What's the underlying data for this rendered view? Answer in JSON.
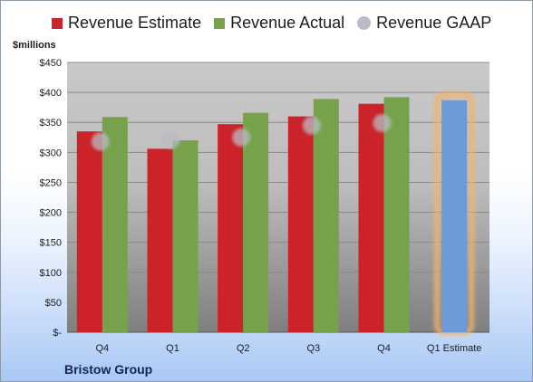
{
  "chart_data": {
    "type": "bar",
    "categories": [
      "Q4",
      "Q1",
      "Q2",
      "Q3",
      "Q4",
      "Q1 Estimate"
    ],
    "series": [
      {
        "name": "Revenue Estimate",
        "type": "bar",
        "color": "#cc2229",
        "values": [
          335,
          306,
          347,
          360,
          381,
          null
        ]
      },
      {
        "name": "Revenue Actual",
        "type": "bar",
        "color": "#77a24b",
        "values": [
          359,
          320,
          366,
          389,
          392,
          null
        ]
      },
      {
        "name": "Revenue GAAP",
        "type": "marker",
        "color": "#b9bcc4",
        "values": [
          318,
          321,
          325,
          345,
          349,
          null
        ]
      }
    ],
    "forecast": {
      "category": "Q1 Estimate",
      "value": 387,
      "color": "#6f9ad8",
      "highlight_color": "#f5b46b"
    },
    "ylabel": "$millions",
    "ylim": [
      0,
      450
    ],
    "y_ticks": [
      0,
      50,
      100,
      150,
      200,
      250,
      300,
      350,
      400,
      450
    ],
    "y_tick_labels": [
      "$-",
      "$50",
      "$100",
      "$150",
      "$200",
      "$250",
      "$300",
      "$350",
      "$400",
      "$450"
    ],
    "grid": true,
    "legend_position": "top"
  },
  "legend": [
    {
      "label": "Revenue Estimate",
      "color": "#cc2229",
      "shape": "square"
    },
    {
      "label": "Revenue Actual",
      "color": "#77a24b",
      "shape": "square"
    },
    {
      "label": "Revenue GAAP",
      "color": "#b9bcc4",
      "shape": "circle"
    }
  ],
  "company": "Bristow Group"
}
